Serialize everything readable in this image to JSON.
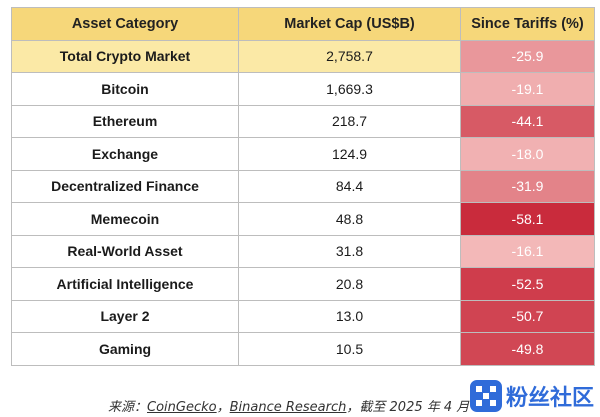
{
  "chart_data": {
    "type": "table",
    "columns": [
      "Asset Category",
      "Market Cap (US$B)",
      "Since Tariffs (%)"
    ],
    "rows": [
      {
        "category": "Total Crypto Market",
        "market_cap": "2,758.7",
        "since_tariffs": "-25.9",
        "highlight": true
      },
      {
        "category": "Bitcoin",
        "market_cap": "1,669.3",
        "since_tariffs": "-19.1"
      },
      {
        "category": "Ethereum",
        "market_cap": "218.7",
        "since_tariffs": "-44.1"
      },
      {
        "category": "Exchange",
        "market_cap": "124.9",
        "since_tariffs": "-18.0"
      },
      {
        "category": "Decentralized Finance",
        "market_cap": "84.4",
        "since_tariffs": "-31.9"
      },
      {
        "category": "Memecoin",
        "market_cap": "48.8",
        "since_tariffs": "-58.1"
      },
      {
        "category": "Real-World Asset",
        "market_cap": "31.8",
        "since_tariffs": "-16.1"
      },
      {
        "category": "Artificial Intelligence",
        "market_cap": "20.8",
        "since_tariffs": "-52.5"
      },
      {
        "category": "Layer 2",
        "market_cap": "13.0",
        "since_tariffs": "-50.7"
      },
      {
        "category": "Gaming",
        "market_cap": "10.5",
        "since_tariffs": "-49.8"
      }
    ]
  },
  "source": {
    "prefix": "来源：",
    "coingecko": "CoinGecko",
    "sep": "，",
    "binance": "Binance Research",
    "suffix": "，截至 2025 年 4 月"
  },
  "watermark": {
    "text": "粉丝社区",
    "icon": "ok-logo-icon"
  },
  "colors": {
    "header_bg": "#f6d77a",
    "highlight_bg": "#fbe9a6",
    "heat_light": "#f3b8b8",
    "heat_dark": "#c92b3c"
  }
}
